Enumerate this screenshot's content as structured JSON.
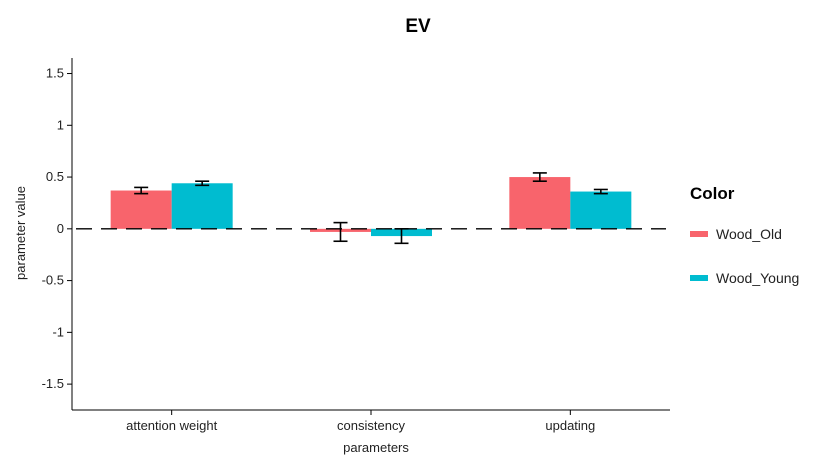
{
  "chart_data": {
    "type": "bar",
    "title": "EV",
    "xlabel": "parameters",
    "ylabel": "parameter value",
    "ylim": [
      -1.75,
      1.65
    ],
    "yticks": [
      1.5,
      1,
      0.5,
      0,
      -0.5,
      -1,
      -1.5
    ],
    "ytick_labels": [
      "1.5",
      "1",
      "0.5",
      "0",
      "-0.5",
      "-1",
      "-1.5"
    ],
    "categories": [
      "attention weight",
      "consistency",
      "updating"
    ],
    "reference_line": 0,
    "legend": {
      "title": "Color",
      "position": "right"
    },
    "series": [
      {
        "name": "Wood_Old",
        "color": "#F8646C",
        "values": [
          0.37,
          -0.03,
          0.5
        ],
        "error": [
          0.03,
          0.09,
          0.04
        ]
      },
      {
        "name": "Wood_Young",
        "color": "#00BCD0",
        "values": [
          0.44,
          -0.07,
          0.36
        ],
        "error": [
          0.02,
          0.07,
          0.02
        ]
      }
    ]
  }
}
